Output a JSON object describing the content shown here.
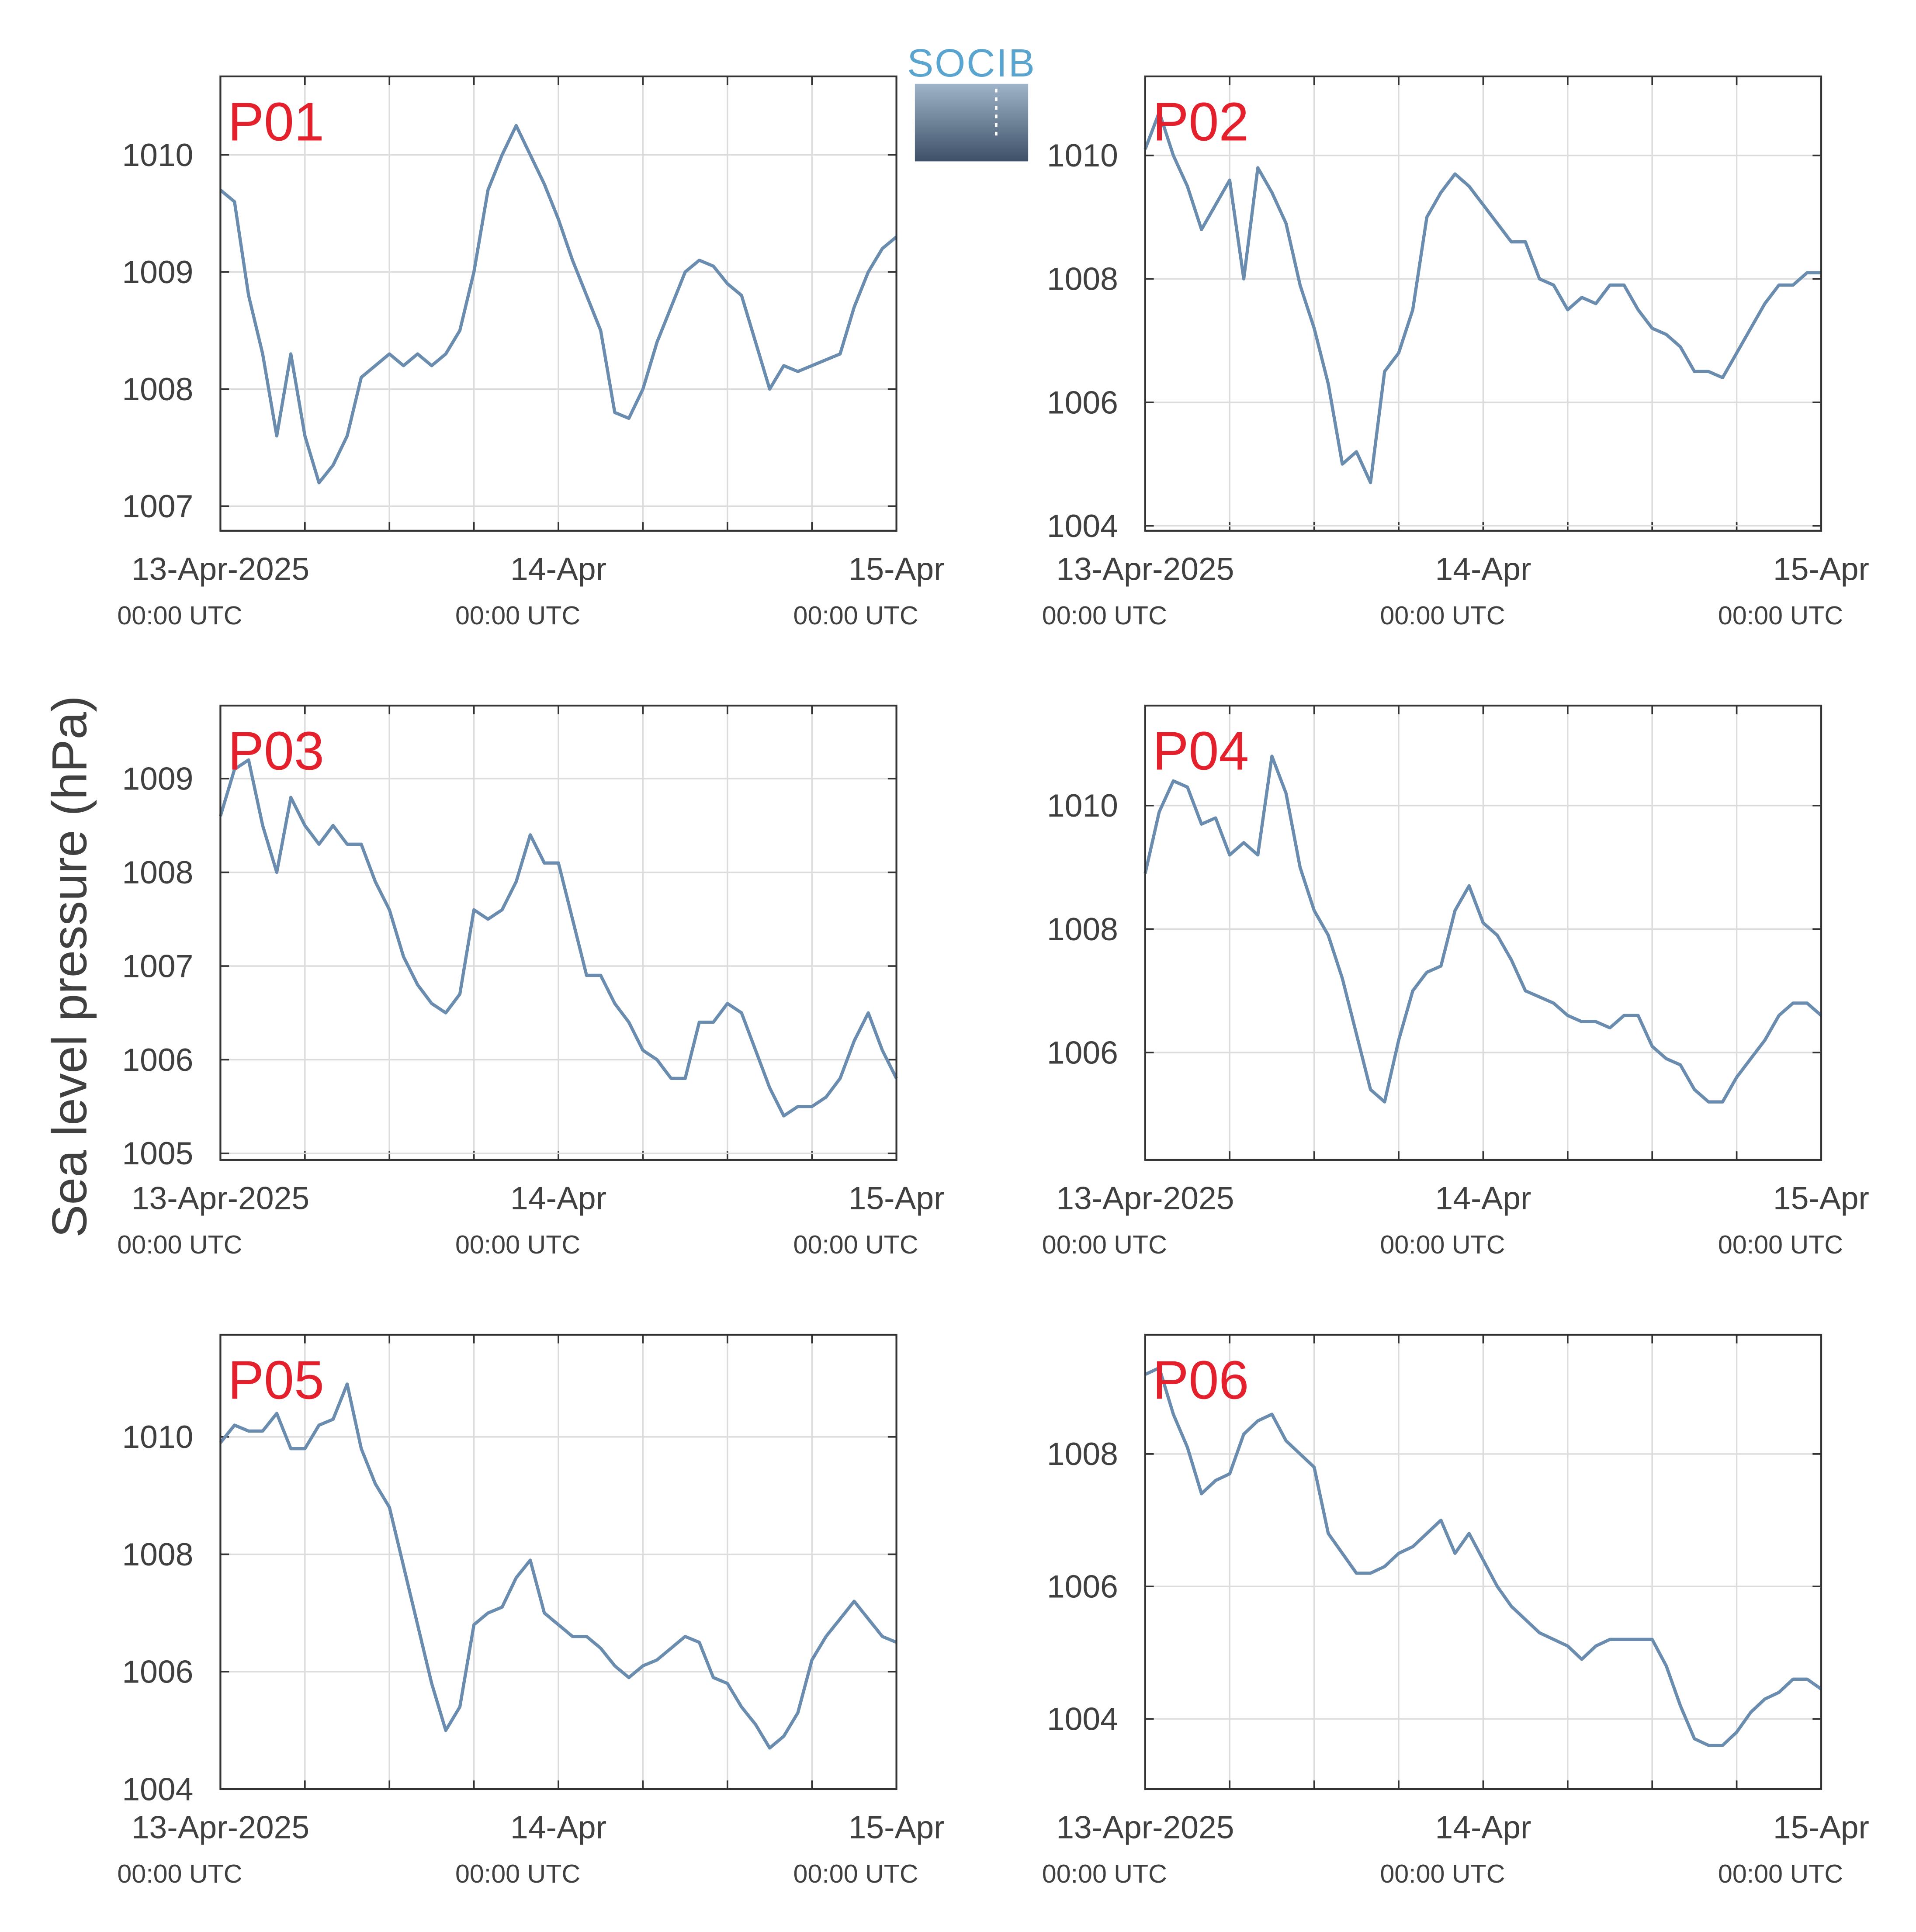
{
  "logo": "SOCIB",
  "ylabel": "Sea level pressure (hPa)",
  "chart_data": [
    {
      "type": "line",
      "title": "P01",
      "color": "#6a8caf",
      "grid": true,
      "x": [
        "2025-04-13 00:00",
        "2025-04-13 01:00",
        "2025-04-13 02:00",
        "2025-04-13 03:00",
        "2025-04-13 04:00",
        "2025-04-13 05:00",
        "2025-04-13 06:00",
        "2025-04-13 07:00",
        "2025-04-13 08:00",
        "2025-04-13 09:00",
        "2025-04-13 10:00",
        "2025-04-13 11:00",
        "2025-04-13 12:00",
        "2025-04-13 13:00",
        "2025-04-13 14:00",
        "2025-04-13 15:00",
        "2025-04-13 16:00",
        "2025-04-13 17:00",
        "2025-04-13 18:00",
        "2025-04-13 19:00",
        "2025-04-13 20:00",
        "2025-04-13 21:00",
        "2025-04-13 22:00",
        "2025-04-13 23:00",
        "2025-04-14 00:00",
        "2025-04-14 01:00",
        "2025-04-14 02:00",
        "2025-04-14 03:00",
        "2025-04-14 04:00",
        "2025-04-14 05:00",
        "2025-04-14 06:00",
        "2025-04-14 07:00",
        "2025-04-14 08:00",
        "2025-04-14 09:00",
        "2025-04-14 10:00",
        "2025-04-14 11:00",
        "2025-04-14 12:00",
        "2025-04-14 13:00",
        "2025-04-14 14:00",
        "2025-04-14 15:00",
        "2025-04-14 16:00",
        "2025-04-14 17:00",
        "2025-04-14 18:00",
        "2025-04-14 19:00",
        "2025-04-14 20:00",
        "2025-04-14 21:00",
        "2025-04-14 22:00",
        "2025-04-14 23:00",
        "2025-04-15 00:00"
      ],
      "values": [
        1009.7,
        1009.6,
        1008.8,
        1008.3,
        1007.6,
        1008.3,
        1007.6,
        1007.2,
        1007.35,
        1007.6,
        1008.1,
        1008.2,
        1008.3,
        1008.2,
        1008.3,
        1008.2,
        1008.3,
        1008.5,
        1009.0,
        1009.7,
        1010.0,
        1010.25,
        1010.0,
        1009.75,
        1009.45,
        1009.1,
        1008.8,
        1008.5,
        1007.8,
        1007.75,
        1008.0,
        1008.4,
        1008.7,
        1009.0,
        1009.1,
        1009.05,
        1008.9,
        1008.8,
        1008.4,
        1008.0,
        1008.2,
        1008.15,
        1008.2,
        1008.25,
        1008.3,
        1008.7,
        1009.0,
        1009.2,
        1009.3
      ],
      "xlim": [
        "2025-04-13 00:00",
        "2025-04-15 00:00"
      ],
      "xticks": [
        {
          "value": "2025-04-13 00:00",
          "label": "13-Apr-2025",
          "sublabel": "00:00 UTC"
        },
        "2025-04-13 06:00",
        "2025-04-13 12:00",
        "2025-04-13 18:00",
        {
          "value": "2025-04-14 00:00",
          "label": "14-Apr",
          "sublabel": "00:00 UTC"
        },
        "2025-04-14 06:00",
        "2025-04-14 12:00",
        "2025-04-14 18:00",
        {
          "value": "2025-04-15 00:00",
          "label": "15-Apr",
          "sublabel": "00:00 UTC"
        }
      ],
      "ylim": [
        1006.79,
        1010.67
      ],
      "yticks": [
        1007,
        1008,
        1009,
        1010
      ]
    },
    {
      "type": "line",
      "title": "P02",
      "color": "#6a8caf",
      "grid": true,
      "x": [
        "2025-04-13 00:00",
        "2025-04-13 01:00",
        "2025-04-13 02:00",
        "2025-04-13 03:00",
        "2025-04-13 04:00",
        "2025-04-13 05:00",
        "2025-04-13 06:00",
        "2025-04-13 07:00",
        "2025-04-13 08:00",
        "2025-04-13 09:00",
        "2025-04-13 10:00",
        "2025-04-13 11:00",
        "2025-04-13 12:00",
        "2025-04-13 13:00",
        "2025-04-13 14:00",
        "2025-04-13 15:00",
        "2025-04-13 16:00",
        "2025-04-13 17:00",
        "2025-04-13 18:00",
        "2025-04-13 19:00",
        "2025-04-13 20:00",
        "2025-04-13 21:00",
        "2025-04-13 22:00",
        "2025-04-13 23:00",
        "2025-04-14 00:00",
        "2025-04-14 01:00",
        "2025-04-14 02:00",
        "2025-04-14 03:00",
        "2025-04-14 04:00",
        "2025-04-14 05:00",
        "2025-04-14 06:00",
        "2025-04-14 07:00",
        "2025-04-14 08:00",
        "2025-04-14 09:00",
        "2025-04-14 10:00",
        "2025-04-14 11:00",
        "2025-04-14 12:00",
        "2025-04-14 13:00",
        "2025-04-14 14:00",
        "2025-04-14 15:00",
        "2025-04-14 16:00",
        "2025-04-14 17:00",
        "2025-04-14 18:00",
        "2025-04-14 19:00",
        "2025-04-14 20:00",
        "2025-04-14 21:00",
        "2025-04-14 22:00",
        "2025-04-14 23:00",
        "2025-04-15 00:00"
      ],
      "values": [
        1010.1,
        1010.7,
        1010.0,
        1009.5,
        1008.8,
        1009.2,
        1009.6,
        1008.0,
        1009.8,
        1009.4,
        1008.9,
        1007.9,
        1007.2,
        1006.3,
        1005.0,
        1005.2,
        1004.7,
        1006.5,
        1006.8,
        1007.5,
        1009.0,
        1009.4,
        1009.7,
        1009.5,
        1009.2,
        1008.9,
        1008.6,
        1008.6,
        1008.0,
        1007.9,
        1007.5,
        1007.7,
        1007.6,
        1007.9,
        1007.9,
        1007.5,
        1007.2,
        1007.1,
        1006.9,
        1006.5,
        1006.5,
        1006.4,
        1006.8,
        1007.2,
        1007.6,
        1007.9,
        1007.9,
        1008.1,
        1008.1
      ],
      "xlim": [
        "2025-04-13 00:00",
        "2025-04-15 00:00"
      ],
      "xticks": [
        {
          "value": "2025-04-13 00:00",
          "label": "13-Apr-2025",
          "sublabel": "00:00 UTC"
        },
        "2025-04-13 06:00",
        "2025-04-13 12:00",
        "2025-04-13 18:00",
        {
          "value": "2025-04-14 00:00",
          "label": "14-Apr",
          "sublabel": "00:00 UTC"
        },
        "2025-04-14 06:00",
        "2025-04-14 12:00",
        "2025-04-14 18:00",
        {
          "value": "2025-04-15 00:00",
          "label": "15-Apr",
          "sublabel": "00:00 UTC"
        }
      ],
      "ylim": [
        1003.92,
        1011.28
      ],
      "yticks": [
        1004,
        1006,
        1008,
        1010
      ]
    },
    {
      "type": "line",
      "title": "P03",
      "color": "#6a8caf",
      "grid": true,
      "x": [
        "2025-04-13 00:00",
        "2025-04-13 01:00",
        "2025-04-13 02:00",
        "2025-04-13 03:00",
        "2025-04-13 04:00",
        "2025-04-13 05:00",
        "2025-04-13 06:00",
        "2025-04-13 07:00",
        "2025-04-13 08:00",
        "2025-04-13 09:00",
        "2025-04-13 10:00",
        "2025-04-13 11:00",
        "2025-04-13 12:00",
        "2025-04-13 13:00",
        "2025-04-13 14:00",
        "2025-04-13 15:00",
        "2025-04-13 16:00",
        "2025-04-13 17:00",
        "2025-04-13 18:00",
        "2025-04-13 19:00",
        "2025-04-13 20:00",
        "2025-04-13 21:00",
        "2025-04-13 22:00",
        "2025-04-13 23:00",
        "2025-04-14 00:00",
        "2025-04-14 01:00",
        "2025-04-14 02:00",
        "2025-04-14 03:00",
        "2025-04-14 04:00",
        "2025-04-14 05:00",
        "2025-04-14 06:00",
        "2025-04-14 07:00",
        "2025-04-14 08:00",
        "2025-04-14 09:00",
        "2025-04-14 10:00",
        "2025-04-14 11:00",
        "2025-04-14 12:00",
        "2025-04-14 13:00",
        "2025-04-14 14:00",
        "2025-04-14 15:00",
        "2025-04-14 16:00",
        "2025-04-14 17:00",
        "2025-04-14 18:00",
        "2025-04-14 19:00",
        "2025-04-14 20:00",
        "2025-04-14 21:00",
        "2025-04-14 22:00",
        "2025-04-14 23:00",
        "2025-04-15 00:00"
      ],
      "values": [
        1008.6,
        1009.1,
        1009.2,
        1008.5,
        1008.0,
        1008.8,
        1008.5,
        1008.3,
        1008.5,
        1008.3,
        1008.3,
        1007.9,
        1007.6,
        1007.1,
        1006.8,
        1006.6,
        1006.5,
        1006.7,
        1007.6,
        1007.5,
        1007.6,
        1007.9,
        1008.4,
        1008.1,
        1008.1,
        1007.5,
        1006.9,
        1006.9,
        1006.6,
        1006.4,
        1006.1,
        1006.0,
        1005.8,
        1005.8,
        1006.4,
        1006.4,
        1006.6,
        1006.5,
        1006.1,
        1005.7,
        1005.4,
        1005.5,
        1005.5,
        1005.6,
        1005.8,
        1006.2,
        1006.5,
        1006.1,
        1005.8
      ],
      "xlim": [
        "2025-04-13 00:00",
        "2025-04-15 00:00"
      ],
      "xticks": [
        {
          "value": "2025-04-13 00:00",
          "label": "13-Apr-2025",
          "sublabel": "00:00 UTC"
        },
        "2025-04-13 06:00",
        "2025-04-13 12:00",
        "2025-04-13 18:00",
        {
          "value": "2025-04-14 00:00",
          "label": "14-Apr",
          "sublabel": "00:00 UTC"
        },
        "2025-04-14 06:00",
        "2025-04-14 12:00",
        "2025-04-14 18:00",
        {
          "value": "2025-04-15 00:00",
          "label": "15-Apr",
          "sublabel": "00:00 UTC"
        }
      ],
      "ylim": [
        1004.93,
        1009.78
      ],
      "yticks": [
        1005,
        1006,
        1007,
        1008,
        1009
      ]
    },
    {
      "type": "line",
      "title": "P04",
      "color": "#6a8caf",
      "grid": true,
      "x": [
        "2025-04-13 00:00",
        "2025-04-13 01:00",
        "2025-04-13 02:00",
        "2025-04-13 03:00",
        "2025-04-13 04:00",
        "2025-04-13 05:00",
        "2025-04-13 06:00",
        "2025-04-13 07:00",
        "2025-04-13 08:00",
        "2025-04-13 09:00",
        "2025-04-13 10:00",
        "2025-04-13 11:00",
        "2025-04-13 12:00",
        "2025-04-13 13:00",
        "2025-04-13 14:00",
        "2025-04-13 15:00",
        "2025-04-13 16:00",
        "2025-04-13 17:00",
        "2025-04-13 18:00",
        "2025-04-13 19:00",
        "2025-04-13 20:00",
        "2025-04-13 21:00",
        "2025-04-13 22:00",
        "2025-04-13 23:00",
        "2025-04-14 00:00",
        "2025-04-14 01:00",
        "2025-04-14 02:00",
        "2025-04-14 03:00",
        "2025-04-14 04:00",
        "2025-04-14 05:00",
        "2025-04-14 06:00",
        "2025-04-14 07:00",
        "2025-04-14 08:00",
        "2025-04-14 09:00",
        "2025-04-14 10:00",
        "2025-04-14 11:00",
        "2025-04-14 12:00",
        "2025-04-14 13:00",
        "2025-04-14 14:00",
        "2025-04-14 15:00",
        "2025-04-14 16:00",
        "2025-04-14 17:00",
        "2025-04-14 18:00",
        "2025-04-14 19:00",
        "2025-04-14 20:00",
        "2025-04-14 21:00",
        "2025-04-14 22:00",
        "2025-04-14 23:00",
        "2025-04-15 00:00"
      ],
      "values": [
        1008.9,
        1009.9,
        1010.4,
        1010.3,
        1009.7,
        1009.8,
        1009.2,
        1009.4,
        1009.2,
        1010.8,
        1010.2,
        1009.0,
        1008.3,
        1007.9,
        1007.2,
        1006.3,
        1005.4,
        1005.2,
        1006.2,
        1007.0,
        1007.3,
        1007.4,
        1008.3,
        1008.7,
        1008.1,
        1007.9,
        1007.5,
        1007.0,
        1006.9,
        1006.8,
        1006.6,
        1006.5,
        1006.5,
        1006.4,
        1006.6,
        1006.6,
        1006.1,
        1005.9,
        1005.8,
        1005.4,
        1005.2,
        1005.2,
        1005.6,
        1005.9,
        1006.2,
        1006.6,
        1006.8,
        1006.8,
        1006.6
      ],
      "xlim": [
        "2025-04-13 00:00",
        "2025-04-15 00:00"
      ],
      "xticks": [
        {
          "value": "2025-04-13 00:00",
          "label": "13-Apr-2025",
          "sublabel": "00:00 UTC"
        },
        "2025-04-13 06:00",
        "2025-04-13 12:00",
        "2025-04-13 18:00",
        {
          "value": "2025-04-14 00:00",
          "label": "14-Apr",
          "sublabel": "00:00 UTC"
        },
        "2025-04-14 06:00",
        "2025-04-14 12:00",
        "2025-04-14 18:00",
        {
          "value": "2025-04-15 00:00",
          "label": "15-Apr",
          "sublabel": "00:00 UTC"
        }
      ],
      "ylim": [
        1004.26,
        1011.62
      ],
      "yticks": [
        1006,
        1008,
        1010
      ]
    },
    {
      "type": "line",
      "title": "P05",
      "color": "#6a8caf",
      "grid": true,
      "x": [
        "2025-04-13 00:00",
        "2025-04-13 01:00",
        "2025-04-13 02:00",
        "2025-04-13 03:00",
        "2025-04-13 04:00",
        "2025-04-13 05:00",
        "2025-04-13 06:00",
        "2025-04-13 07:00",
        "2025-04-13 08:00",
        "2025-04-13 09:00",
        "2025-04-13 10:00",
        "2025-04-13 11:00",
        "2025-04-13 12:00",
        "2025-04-13 13:00",
        "2025-04-13 14:00",
        "2025-04-13 15:00",
        "2025-04-13 16:00",
        "2025-04-13 17:00",
        "2025-04-13 18:00",
        "2025-04-13 19:00",
        "2025-04-13 20:00",
        "2025-04-13 21:00",
        "2025-04-13 22:00",
        "2025-04-13 23:00",
        "2025-04-14 00:00",
        "2025-04-14 01:00",
        "2025-04-14 02:00",
        "2025-04-14 03:00",
        "2025-04-14 04:00",
        "2025-04-14 05:00",
        "2025-04-14 06:00",
        "2025-04-14 07:00",
        "2025-04-14 08:00",
        "2025-04-14 09:00",
        "2025-04-14 10:00",
        "2025-04-14 11:00",
        "2025-04-14 12:00",
        "2025-04-14 13:00",
        "2025-04-14 14:00",
        "2025-04-14 15:00",
        "2025-04-14 16:00",
        "2025-04-14 17:00",
        "2025-04-14 18:00",
        "2025-04-14 19:00",
        "2025-04-14 20:00",
        "2025-04-14 21:00",
        "2025-04-14 22:00",
        "2025-04-14 23:00",
        "2025-04-15 00:00"
      ],
      "values": [
        1009.9,
        1010.2,
        1010.1,
        1010.1,
        1010.4,
        1009.8,
        1009.8,
        1010.2,
        1010.3,
        1010.9,
        1009.8,
        1009.2,
        1008.8,
        1007.8,
        1006.8,
        1005.8,
        1005.0,
        1005.4,
        1006.8,
        1007.0,
        1007.1,
        1007.6,
        1007.9,
        1007.0,
        1006.8,
        1006.6,
        1006.6,
        1006.4,
        1006.1,
        1005.9,
        1006.1,
        1006.2,
        1006.4,
        1006.6,
        1006.5,
        1005.9,
        1005.8,
        1005.4,
        1005.1,
        1004.7,
        1004.9,
        1005.3,
        1006.2,
        1006.6,
        1006.9,
        1007.2,
        1006.9,
        1006.6,
        1006.5
      ],
      "xlim": [
        "2025-04-13 00:00",
        "2025-04-15 00:00"
      ],
      "xticks": [
        {
          "value": "2025-04-13 00:00",
          "label": "13-Apr-2025",
          "sublabel": "00:00 UTC"
        },
        "2025-04-13 06:00",
        "2025-04-13 12:00",
        "2025-04-13 18:00",
        {
          "value": "2025-04-14 00:00",
          "label": "14-Apr",
          "sublabel": "00:00 UTC"
        },
        "2025-04-14 06:00",
        "2025-04-14 12:00",
        "2025-04-14 18:00",
        {
          "value": "2025-04-15 00:00",
          "label": "15-Apr",
          "sublabel": "00:00 UTC"
        }
      ],
      "ylim": [
        1004,
        1011.74
      ],
      "yticks": [
        1004,
        1006,
        1008,
        1010
      ]
    },
    {
      "type": "line",
      "title": "P06",
      "color": "#6a8caf",
      "grid": true,
      "x": [
        "2025-04-13 00:00",
        "2025-04-13 01:00",
        "2025-04-13 02:00",
        "2025-04-13 03:00",
        "2025-04-13 04:00",
        "2025-04-13 05:00",
        "2025-04-13 06:00",
        "2025-04-13 07:00",
        "2025-04-13 08:00",
        "2025-04-13 09:00",
        "2025-04-13 10:00",
        "2025-04-13 11:00",
        "2025-04-13 12:00",
        "2025-04-13 13:00",
        "2025-04-13 14:00",
        "2025-04-13 15:00",
        "2025-04-13 16:00",
        "2025-04-13 17:00",
        "2025-04-13 18:00",
        "2025-04-13 19:00",
        "2025-04-13 20:00",
        "2025-04-13 21:00",
        "2025-04-13 22:00",
        "2025-04-13 23:00",
        "2025-04-14 00:00",
        "2025-04-14 01:00",
        "2025-04-14 02:00",
        "2025-04-14 03:00",
        "2025-04-14 04:00",
        "2025-04-14 05:00",
        "2025-04-14 06:00",
        "2025-04-14 07:00",
        "2025-04-14 08:00",
        "2025-04-14 09:00",
        "2025-04-14 10:00",
        "2025-04-14 11:00",
        "2025-04-14 12:00",
        "2025-04-14 13:00",
        "2025-04-14 14:00",
        "2025-04-14 15:00",
        "2025-04-14 16:00",
        "2025-04-14 17:00",
        "2025-04-14 18:00",
        "2025-04-14 19:00",
        "2025-04-14 20:00",
        "2025-04-14 21:00",
        "2025-04-14 22:00",
        "2025-04-14 23:00",
        "2025-04-15 00:00"
      ],
      "values": [
        1009.2,
        1009.3,
        1008.6,
        1008.1,
        1007.4,
        1007.6,
        1007.7,
        1008.3,
        1008.5,
        1008.6,
        1008.2,
        1008.0,
        1007.8,
        1006.8,
        1006.5,
        1006.2,
        1006.2,
        1006.3,
        1006.5,
        1006.6,
        1006.8,
        1007.0,
        1006.5,
        1006.8,
        1006.4,
        1006.0,
        1005.7,
        1005.5,
        1005.3,
        1005.2,
        1005.1,
        1004.9,
        1005.1,
        1005.2,
        1005.2,
        1005.2,
        1005.2,
        1004.8,
        1004.2,
        1003.7,
        1003.6,
        1003.6,
        1003.8,
        1004.1,
        1004.3,
        1004.4,
        1004.6,
        1004.6,
        1004.45
      ],
      "xlim": [
        "2025-04-13 00:00",
        "2025-04-15 00:00"
      ],
      "xticks": [
        {
          "value": "2025-04-13 00:00",
          "label": "13-Apr-2025",
          "sublabel": "00:00 UTC"
        },
        "2025-04-13 06:00",
        "2025-04-13 12:00",
        "2025-04-13 18:00",
        {
          "value": "2025-04-14 00:00",
          "label": "14-Apr",
          "sublabel": "00:00 UTC"
        },
        "2025-04-14 06:00",
        "2025-04-14 12:00",
        "2025-04-14 18:00",
        {
          "value": "2025-04-15 00:00",
          "label": "15-Apr",
          "sublabel": "00:00 UTC"
        }
      ],
      "ylim": [
        1002.94,
        1009.8
      ],
      "yticks": [
        1004,
        1006,
        1008
      ]
    }
  ]
}
